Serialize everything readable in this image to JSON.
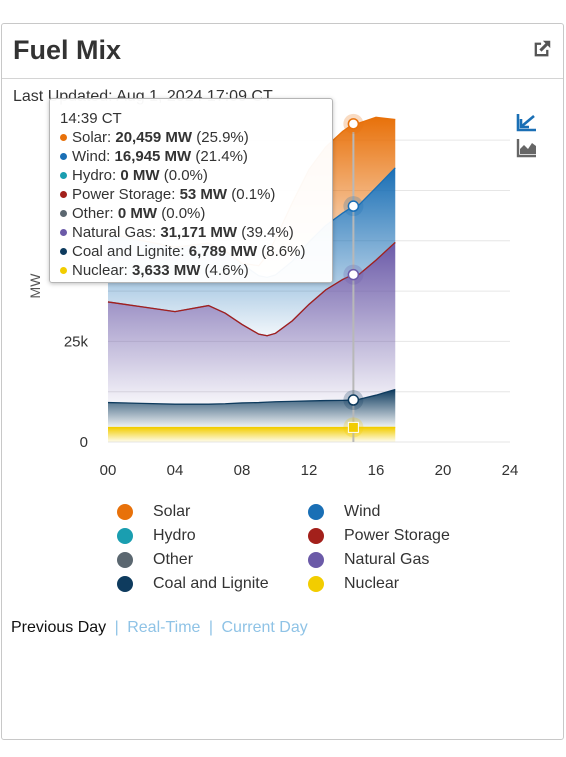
{
  "header": {
    "title": "Fuel Mix",
    "last_updated": "Last Updated: Aug 1, 2024 17:09 CT"
  },
  "colors": {
    "solar": "#e8710a",
    "wind": "#1a6fb5",
    "hydro": "#1a9eb0",
    "power_storage": "#a3201b",
    "other": "#5b6770",
    "natural_gas": "#6b5aa8",
    "coal": "#0e3b5e",
    "nuclear": "#f2cd00"
  },
  "icons": {
    "popout": "external-link-icon",
    "stacked_toggle": "chart-zoom-icon",
    "area_toggle": "area-chart-icon"
  },
  "legend": [
    {
      "key": "solar",
      "label": "Solar"
    },
    {
      "key": "wind",
      "label": "Wind"
    },
    {
      "key": "hydro",
      "label": "Hydro"
    },
    {
      "key": "power_storage",
      "label": "Power Storage"
    },
    {
      "key": "other",
      "label": "Other"
    },
    {
      "key": "natural_gas",
      "label": "Natural Gas"
    },
    {
      "key": "coal",
      "label": "Coal and Lignite"
    },
    {
      "key": "nuclear",
      "label": "Nuclear"
    }
  ],
  "tooltip": {
    "time": "14:39 CT",
    "rows": [
      {
        "key": "solar",
        "name": "Solar",
        "value": "20,459 MW",
        "pct": "(25.9%)"
      },
      {
        "key": "wind",
        "name": "Wind",
        "value": "16,945 MW",
        "pct": "(21.4%)"
      },
      {
        "key": "hydro",
        "name": "Hydro",
        "value": "0 MW",
        "pct": "(0.0%)"
      },
      {
        "key": "power_storage",
        "name": "Power Storage",
        "value": "53 MW",
        "pct": "(0.1%)"
      },
      {
        "key": "other",
        "name": "Other",
        "value": "0 MW",
        "pct": "(0.0%)"
      },
      {
        "key": "natural_gas",
        "name": "Natural Gas",
        "value": "31,171 MW",
        "pct": "(39.4%)"
      },
      {
        "key": "coal",
        "name": "Coal and Lignite",
        "value": "6,789 MW",
        "pct": "(8.6%)"
      },
      {
        "key": "nuclear",
        "name": "Nuclear",
        "value": "3,633 MW",
        "pct": "(4.6%)"
      }
    ]
  },
  "footer": {
    "previous_day": "Previous Day",
    "real_time": "Real-Time",
    "current_day": "Current Day",
    "separator": "|"
  },
  "chart_data": {
    "type": "area",
    "stacked": true,
    "ylabel": "MW",
    "xlabel": "",
    "xlim": [
      0,
      24
    ],
    "ylim": [
      0,
      80000
    ],
    "x_ticks": [
      "00",
      "04",
      "08",
      "12",
      "16",
      "20",
      "24"
    ],
    "y_ticks": [
      {
        "value": 0,
        "label": "0"
      },
      {
        "value": 25000,
        "label": "25k"
      }
    ],
    "x_data_range": [
      0,
      17.15
    ],
    "crosshair_x": 14.65,
    "x": [
      0,
      2,
      4,
      6,
      7,
      8,
      9,
      9.5,
      10,
      11,
      12,
      13,
      14,
      14.65,
      15,
      16,
      17.15
    ],
    "series": [
      {
        "name": "Nuclear",
        "key": "nuclear",
        "values": [
          3600,
          3600,
          3600,
          3600,
          3600,
          3600,
          3600,
          3600,
          3600,
          3600,
          3600,
          3600,
          3600,
          3633,
          3630,
          3630,
          3630
        ]
      },
      {
        "name": "Coal and Lignite",
        "key": "coal",
        "values": [
          6200,
          6000,
          5800,
          5800,
          5900,
          6100,
          6200,
          6300,
          6400,
          6500,
          6600,
          6700,
          6750,
          6789,
          7000,
          8000,
          9400
        ]
      },
      {
        "name": "Other",
        "key": "other",
        "values": [
          0,
          0,
          0,
          0,
          0,
          0,
          0,
          0,
          0,
          0,
          0,
          0,
          0,
          0,
          0,
          0,
          0
        ]
      },
      {
        "name": "Natural Gas",
        "key": "natural_gas",
        "values": [
          25000,
          24000,
          23000,
          24500,
          22500,
          19500,
          17000,
          16500,
          17000,
          20000,
          24000,
          27500,
          30000,
          31171,
          31000,
          33500,
          36500
        ]
      },
      {
        "name": "Power Storage",
        "key": "power_storage",
        "values": [
          0,
          0,
          0,
          0,
          0,
          0,
          0,
          0,
          0,
          0,
          0,
          0,
          0,
          53,
          40,
          50,
          80
        ]
      },
      {
        "name": "Hydro",
        "key": "hydro",
        "values": [
          0,
          0,
          0,
          0,
          0,
          0,
          0,
          0,
          0,
          0,
          0,
          0,
          0,
          0,
          0,
          0,
          0
        ]
      },
      {
        "name": "Wind",
        "key": "wind",
        "values": [
          17000,
          16500,
          16000,
          15500,
          15500,
          15000,
          14500,
          14500,
          14500,
          14800,
          15500,
          16000,
          16500,
          16945,
          17300,
          18000,
          18500
        ]
      },
      {
        "name": "Solar",
        "key": "solar",
        "values": [
          0,
          0,
          0,
          0,
          0,
          200,
          2500,
          5500,
          9000,
          14500,
          18000,
          19500,
          20300,
          20459,
          20300,
          17500,
          12000
        ]
      }
    ]
  }
}
